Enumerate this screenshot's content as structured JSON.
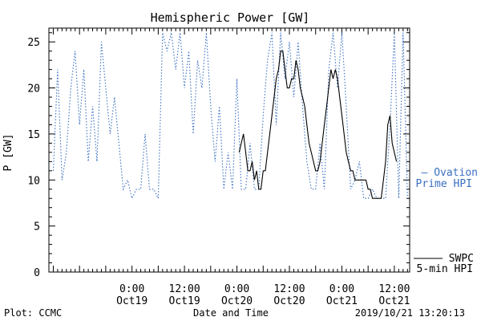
{
  "chart_data": {
    "type": "line",
    "title": "Hemispheric Power [GW]",
    "xlabel": "Date and Time",
    "ylabel": "P [GW]",
    "ylim": [
      0,
      26.5
    ],
    "y_ticks": [
      0,
      5,
      10,
      15,
      20,
      25
    ],
    "x_tick_labels": [
      {
        "time": "0:00",
        "date": "Oct19"
      },
      {
        "time": "12:00",
        "date": "Oct19"
      },
      {
        "time": "0:00",
        "date": "Oct20"
      },
      {
        "time": "12:00",
        "date": "Oct20"
      },
      {
        "time": "0:00",
        "date": "Oct21"
      },
      {
        "time": "12:00",
        "date": "Oct21"
      }
    ],
    "grid": false,
    "legend_placement": "right",
    "colors": {
      "ovation": "#3a6fc0",
      "swpc": "#000000"
    },
    "series": [
      {
        "name": "Ovation Prime HPI",
        "legend_label": [
          "— Ovation",
          "Prime HPI"
        ],
        "style": "dotted",
        "points": [
          [
            "2019-10-18 06:00",
            11
          ],
          [
            "2019-10-18 07:00",
            22
          ],
          [
            "2019-10-18 08:00",
            10
          ],
          [
            "2019-10-18 09:00",
            13
          ],
          [
            "2019-10-18 10:00",
            20
          ],
          [
            "2019-10-18 11:00",
            24
          ],
          [
            "2019-10-18 12:00",
            16
          ],
          [
            "2019-10-18 13:00",
            22
          ],
          [
            "2019-10-18 14:00",
            12
          ],
          [
            "2019-10-18 15:00",
            18
          ],
          [
            "2019-10-18 16:00",
            12
          ],
          [
            "2019-10-18 17:00",
            25
          ],
          [
            "2019-10-18 18:00",
            20
          ],
          [
            "2019-10-18 19:00",
            15
          ],
          [
            "2019-10-18 20:00",
            19
          ],
          [
            "2019-10-18 21:00",
            14
          ],
          [
            "2019-10-18 22:00",
            9
          ],
          [
            "2019-10-18 23:00",
            10
          ],
          [
            "2019-10-19 00:00",
            8
          ],
          [
            "2019-10-19 01:00",
            9
          ],
          [
            "2019-10-19 02:00",
            9
          ],
          [
            "2019-10-19 03:00",
            15
          ],
          [
            "2019-10-19 04:00",
            9
          ],
          [
            "2019-10-19 05:00",
            9
          ],
          [
            "2019-10-19 06:00",
            8
          ],
          [
            "2019-10-19 07:00",
            26
          ],
          [
            "2019-10-19 08:00",
            24
          ],
          [
            "2019-10-19 09:00",
            26
          ],
          [
            "2019-10-19 10:00",
            22
          ],
          [
            "2019-10-19 11:00",
            26
          ],
          [
            "2019-10-19 12:00",
            20
          ],
          [
            "2019-10-19 13:00",
            24
          ],
          [
            "2019-10-19 14:00",
            15
          ],
          [
            "2019-10-19 15:00",
            23
          ],
          [
            "2019-10-19 16:00",
            20
          ],
          [
            "2019-10-19 17:00",
            26
          ],
          [
            "2019-10-19 18:00",
            18
          ],
          [
            "2019-10-19 19:00",
            12
          ],
          [
            "2019-10-19 20:00",
            18
          ],
          [
            "2019-10-19 21:00",
            9
          ],
          [
            "2019-10-19 22:00",
            13
          ],
          [
            "2019-10-19 23:00",
            9
          ],
          [
            "2019-10-20 00:00",
            21
          ],
          [
            "2019-10-20 01:00",
            9
          ],
          [
            "2019-10-20 02:00",
            9
          ],
          [
            "2019-10-20 03:00",
            14
          ],
          [
            "2019-10-20 04:00",
            9
          ],
          [
            "2019-10-20 05:00",
            9
          ],
          [
            "2019-10-20 06:00",
            17
          ],
          [
            "2019-10-20 07:00",
            23
          ],
          [
            "2019-10-20 08:00",
            26
          ],
          [
            "2019-10-20 09:00",
            16
          ],
          [
            "2019-10-20 10:00",
            26
          ],
          [
            "2019-10-20 11:00",
            21
          ],
          [
            "2019-10-20 12:00",
            25
          ],
          [
            "2019-10-20 13:00",
            19
          ],
          [
            "2019-10-20 14:00",
            25
          ],
          [
            "2019-10-20 15:00",
            18
          ],
          [
            "2019-10-20 16:00",
            12
          ],
          [
            "2019-10-20 17:00",
            9
          ],
          [
            "2019-10-20 18:00",
            9
          ],
          [
            "2019-10-20 19:00",
            14
          ],
          [
            "2019-10-20 20:00",
            9
          ],
          [
            "2019-10-20 21:00",
            22
          ],
          [
            "2019-10-20 22:00",
            26
          ],
          [
            "2019-10-20 23:00",
            20
          ],
          [
            "2019-10-21 00:00",
            26
          ],
          [
            "2019-10-21 01:00",
            18
          ],
          [
            "2019-10-21 02:00",
            9
          ],
          [
            "2019-10-21 03:00",
            10
          ],
          [
            "2019-10-21 04:00",
            12
          ],
          [
            "2019-10-21 05:00",
            8
          ],
          [
            "2019-10-21 06:00",
            8
          ],
          [
            "2019-10-21 07:00",
            9
          ],
          [
            "2019-10-21 08:00",
            8
          ],
          [
            "2019-10-21 09:00",
            8
          ],
          [
            "2019-10-21 10:00",
            8
          ],
          [
            "2019-10-21 11:00",
            16
          ],
          [
            "2019-10-21 12:00",
            26
          ],
          [
            "2019-10-21 13:00",
            8
          ],
          [
            "2019-10-21 14:00",
            26
          ],
          [
            "2019-10-21 15:00",
            8
          ]
        ]
      },
      {
        "name": "SWPC 5-min HPI",
        "legend_label": [
          "SWPC",
          "5-min HPI"
        ],
        "style": "solid",
        "points": [
          [
            "2019-10-20 00:30",
            13
          ],
          [
            "2019-10-20 01:00",
            14
          ],
          [
            "2019-10-20 01:30",
            15
          ],
          [
            "2019-10-20 02:00",
            13
          ],
          [
            "2019-10-20 02:30",
            11
          ],
          [
            "2019-10-20 03:00",
            11
          ],
          [
            "2019-10-20 03:30",
            12
          ],
          [
            "2019-10-20 04:00",
            10
          ],
          [
            "2019-10-20 04:30",
            11
          ],
          [
            "2019-10-20 05:00",
            9
          ],
          [
            "2019-10-20 05:30",
            9
          ],
          [
            "2019-10-20 06:00",
            11
          ],
          [
            "2019-10-20 06:30",
            11
          ],
          [
            "2019-10-20 07:00",
            13
          ],
          [
            "2019-10-20 07:30",
            15
          ],
          [
            "2019-10-20 08:00",
            17
          ],
          [
            "2019-10-20 08:30",
            19
          ],
          [
            "2019-10-20 09:00",
            21
          ],
          [
            "2019-10-20 09:30",
            22
          ],
          [
            "2019-10-20 10:00",
            24
          ],
          [
            "2019-10-20 10:30",
            24
          ],
          [
            "2019-10-20 11:00",
            22
          ],
          [
            "2019-10-20 11:30",
            20
          ],
          [
            "2019-10-20 12:00",
            20
          ],
          [
            "2019-10-20 12:30",
            21
          ],
          [
            "2019-10-20 13:00",
            21
          ],
          [
            "2019-10-20 13:30",
            23
          ],
          [
            "2019-10-20 14:00",
            22
          ],
          [
            "2019-10-20 14:30",
            20
          ],
          [
            "2019-10-20 15:00",
            19
          ],
          [
            "2019-10-20 15:30",
            18
          ],
          [
            "2019-10-20 16:00",
            16
          ],
          [
            "2019-10-20 16:30",
            14
          ],
          [
            "2019-10-20 17:00",
            13
          ],
          [
            "2019-10-20 17:30",
            12
          ],
          [
            "2019-10-20 18:00",
            11
          ],
          [
            "2019-10-20 18:30",
            11
          ],
          [
            "2019-10-20 19:00",
            12
          ],
          [
            "2019-10-20 19:30",
            14
          ],
          [
            "2019-10-20 20:00",
            16
          ],
          [
            "2019-10-20 20:30",
            18
          ],
          [
            "2019-10-20 21:00",
            20
          ],
          [
            "2019-10-20 21:30",
            22
          ],
          [
            "2019-10-20 22:00",
            21
          ],
          [
            "2019-10-20 22:30",
            22
          ],
          [
            "2019-10-20 23:00",
            21
          ],
          [
            "2019-10-20 23:30",
            19
          ],
          [
            "2019-10-21 00:00",
            17
          ],
          [
            "2019-10-21 00:30",
            15
          ],
          [
            "2019-10-21 01:00",
            13
          ],
          [
            "2019-10-21 01:30",
            12
          ],
          [
            "2019-10-21 02:00",
            11
          ],
          [
            "2019-10-21 02:30",
            11
          ],
          [
            "2019-10-21 03:00",
            10
          ],
          [
            "2019-10-21 03:30",
            10
          ],
          [
            "2019-10-21 04:00",
            10
          ],
          [
            "2019-10-21 04:30",
            10
          ],
          [
            "2019-10-21 05:00",
            10
          ],
          [
            "2019-10-21 05:30",
            10
          ],
          [
            "2019-10-21 06:00",
            9
          ],
          [
            "2019-10-21 06:30",
            9
          ],
          [
            "2019-10-21 07:00",
            8
          ],
          [
            "2019-10-21 07:30",
            8
          ],
          [
            "2019-10-21 08:00",
            8
          ],
          [
            "2019-10-21 08:30",
            8
          ],
          [
            "2019-10-21 09:00",
            8
          ],
          [
            "2019-10-21 09:30",
            10
          ],
          [
            "2019-10-21 10:00",
            12
          ],
          [
            "2019-10-21 10:30",
            16
          ],
          [
            "2019-10-21 11:00",
            17
          ],
          [
            "2019-10-21 11:30",
            14
          ],
          [
            "2019-10-21 12:00",
            13
          ],
          [
            "2019-10-21 12:30",
            12
          ]
        ]
      }
    ]
  },
  "footer": {
    "left": "Plot: CCMC",
    "right": "2019/10/21 13:20:13"
  }
}
